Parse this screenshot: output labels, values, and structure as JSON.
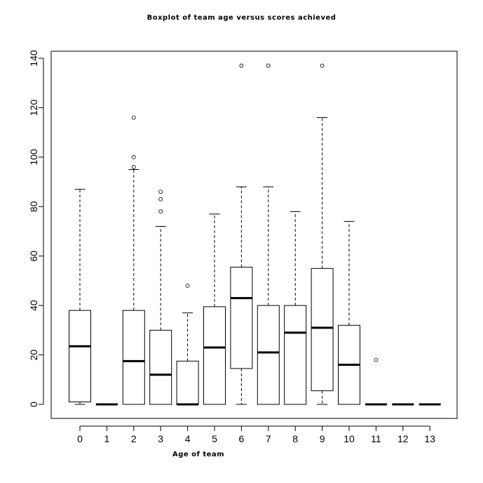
{
  "chart_data": {
    "type": "box",
    "title": "Boxplot of team age versus scores achieved",
    "xlabel": "Age of team",
    "ylabel": "",
    "ylim": [
      -6,
      146
    ],
    "yticks": [
      0,
      20,
      40,
      60,
      80,
      100,
      120,
      140
    ],
    "grid": false,
    "categories": [
      "0",
      "1",
      "2",
      "3",
      "4",
      "5",
      "6",
      "7",
      "8",
      "9",
      "10",
      "11",
      "12",
      "13"
    ],
    "boxes": [
      {
        "category": "0",
        "whisker_low": 0,
        "q1": 1,
        "median": 23.5,
        "q3": 38,
        "whisker_high": 87,
        "outliers": []
      },
      {
        "category": "1",
        "whisker_low": 0,
        "q1": 0,
        "median": 0,
        "q3": 0,
        "whisker_high": 0,
        "outliers": []
      },
      {
        "category": "2",
        "whisker_low": 0,
        "q1": 0,
        "median": 17.5,
        "q3": 38,
        "whisker_high": 95,
        "outliers": [
          96,
          100,
          116
        ]
      },
      {
        "category": "3",
        "whisker_low": 0,
        "q1": 0,
        "median": 12,
        "q3": 30,
        "whisker_high": 72,
        "outliers": [
          78,
          83,
          86
        ]
      },
      {
        "category": "4",
        "whisker_low": 0,
        "q1": 0,
        "median": 0,
        "q3": 17.5,
        "whisker_high": 37,
        "outliers": [
          48
        ]
      },
      {
        "category": "5",
        "whisker_low": 0,
        "q1": 0,
        "median": 23,
        "q3": 39.5,
        "whisker_high": 77,
        "outliers": []
      },
      {
        "category": "6",
        "whisker_low": 0,
        "q1": 14.5,
        "median": 43,
        "q3": 55.5,
        "whisker_high": 88,
        "outliers": [
          137
        ]
      },
      {
        "category": "7",
        "whisker_low": 0,
        "q1": 0,
        "median": 21,
        "q3": 40,
        "whisker_high": 88,
        "outliers": [
          137
        ]
      },
      {
        "category": "8",
        "whisker_low": 0,
        "q1": 0,
        "median": 29,
        "q3": 40,
        "whisker_high": 78,
        "outliers": []
      },
      {
        "category": "9",
        "whisker_low": 0,
        "q1": 5.5,
        "median": 31,
        "q3": 55,
        "whisker_high": 116,
        "outliers": [
          137
        ]
      },
      {
        "category": "10",
        "whisker_low": 0,
        "q1": 0,
        "median": 16,
        "q3": 32,
        "whisker_high": 74,
        "outliers": []
      },
      {
        "category": "11",
        "whisker_low": 0,
        "q1": 0,
        "median": 0,
        "q3": 0,
        "whisker_high": 0,
        "outliers": [
          18
        ]
      },
      {
        "category": "12",
        "whisker_low": 0,
        "q1": 0,
        "median": 0,
        "q3": 0,
        "whisker_high": 0,
        "outliers": []
      },
      {
        "category": "13",
        "whisker_low": 0,
        "q1": 0,
        "median": 0,
        "q3": 0,
        "whisker_high": 0,
        "outliers": []
      }
    ]
  }
}
